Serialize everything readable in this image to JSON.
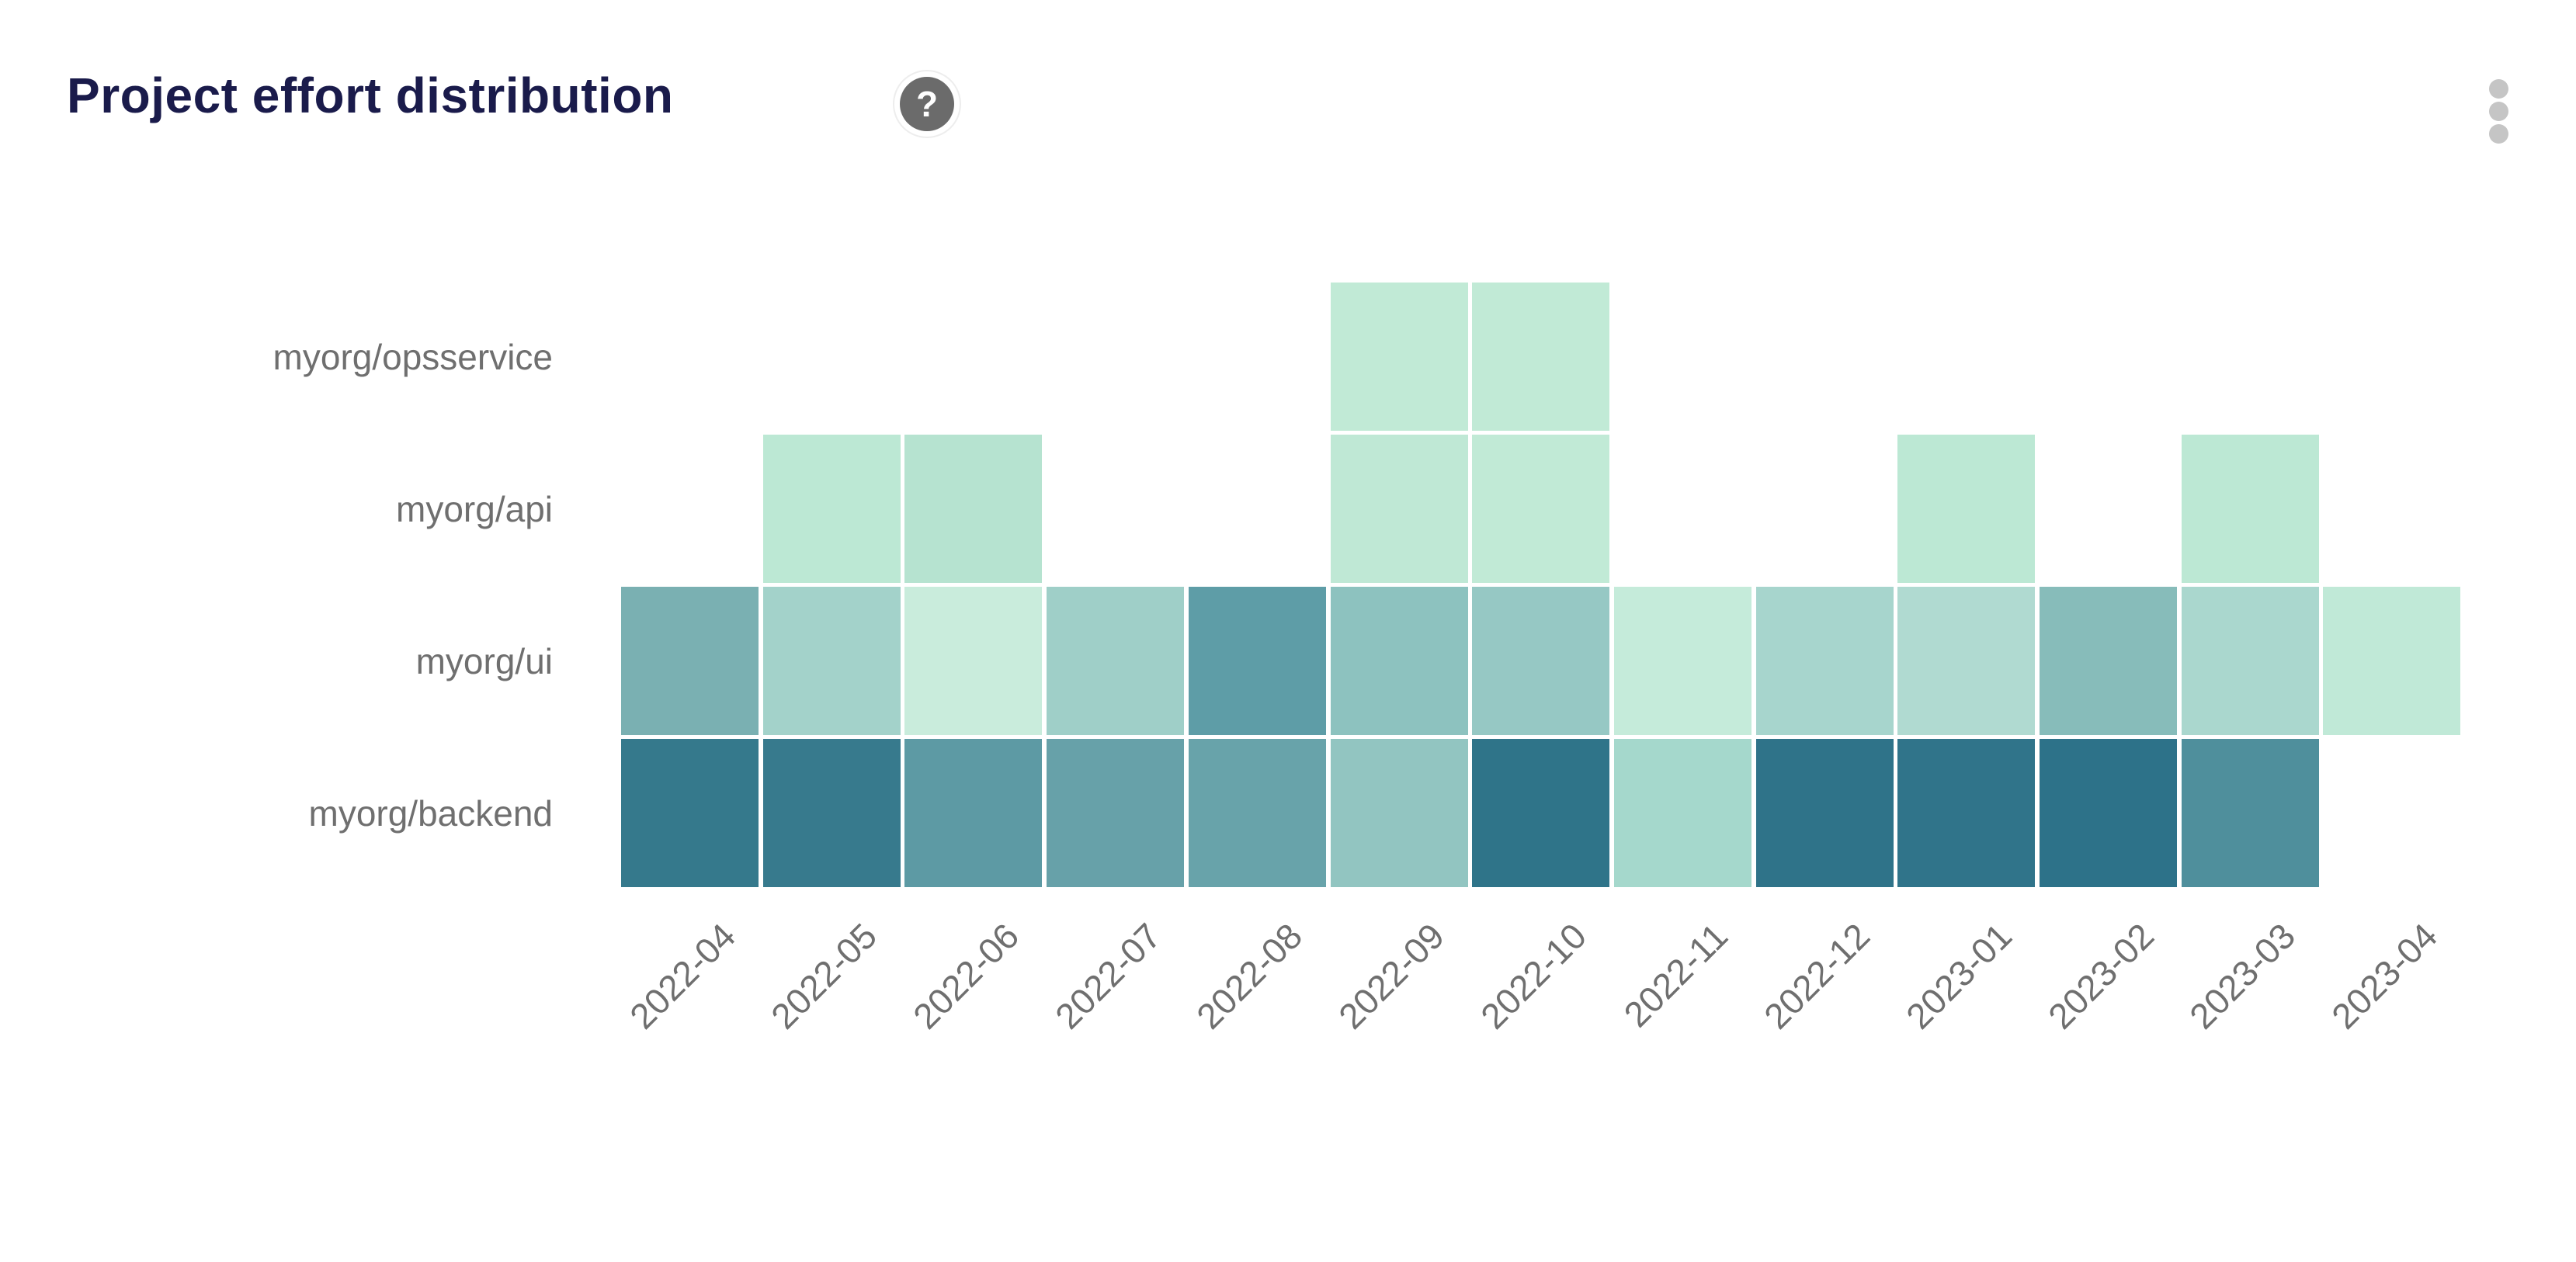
{
  "header": {
    "title": "Project effort distribution",
    "help_glyph": "?"
  },
  "chart_data": {
    "type": "heatmap",
    "title": "Project effort distribution",
    "x_categories": [
      "2022-04",
      "2022-05",
      "2022-06",
      "2022-07",
      "2022-08",
      "2022-09",
      "2022-10",
      "2022-11",
      "2022-12",
      "2023-01",
      "2023-02",
      "2023-03",
      "2023-04"
    ],
    "y_categories": [
      "myorg/opsservice",
      "myorg/api",
      "myorg/ui",
      "myorg/backend"
    ],
    "color_scale": {
      "low": "#c9ecdc",
      "high": "#2d7289"
    },
    "axis_label_color": "#6f6f6f",
    "cells": [
      {
        "y": "myorg/opsservice",
        "x": "2022-09",
        "color": "#c1ead6"
      },
      {
        "y": "myorg/opsservice",
        "x": "2022-10",
        "color": "#c1ead6"
      },
      {
        "y": "myorg/api",
        "x": "2022-05",
        "color": "#bce8d4"
      },
      {
        "y": "myorg/api",
        "x": "2022-06",
        "color": "#b6e3d0"
      },
      {
        "y": "myorg/api",
        "x": "2022-09",
        "color": "#bfe8d5"
      },
      {
        "y": "myorg/api",
        "x": "2022-10",
        "color": "#c1ead6"
      },
      {
        "y": "myorg/api",
        "x": "2023-01",
        "color": "#bce8d4"
      },
      {
        "y": "myorg/api",
        "x": "2023-03",
        "color": "#bce8d4"
      },
      {
        "y": "myorg/ui",
        "x": "2022-04",
        "color": "#7ab0b2"
      },
      {
        "y": "myorg/ui",
        "x": "2022-05",
        "color": "#a3d2ca"
      },
      {
        "y": "myorg/ui",
        "x": "2022-06",
        "color": "#c9ecdc"
      },
      {
        "y": "myorg/ui",
        "x": "2022-07",
        "color": "#9fcfc8"
      },
      {
        "y": "myorg/ui",
        "x": "2022-08",
        "color": "#5e9da7"
      },
      {
        "y": "myorg/ui",
        "x": "2022-09",
        "color": "#8dc2bf"
      },
      {
        "y": "myorg/ui",
        "x": "2022-10",
        "color": "#96c8c4"
      },
      {
        "y": "myorg/ui",
        "x": "2022-11",
        "color": "#c5ebda"
      },
      {
        "y": "myorg/ui",
        "x": "2022-12",
        "color": "#a7d5cd"
      },
      {
        "y": "myorg/ui",
        "x": "2023-01",
        "color": "#b0dad1"
      },
      {
        "y": "myorg/ui",
        "x": "2023-02",
        "color": "#87bcba"
      },
      {
        "y": "myorg/ui",
        "x": "2023-03",
        "color": "#aad7ce"
      },
      {
        "y": "myorg/ui",
        "x": "2023-04",
        "color": "#c0e9d7"
      },
      {
        "y": "myorg/backend",
        "x": "2022-04",
        "color": "#35798c"
      },
      {
        "y": "myorg/backend",
        "x": "2022-05",
        "color": "#377a8d"
      },
      {
        "y": "myorg/backend",
        "x": "2022-06",
        "color": "#5d9aa4"
      },
      {
        "y": "myorg/backend",
        "x": "2022-07",
        "color": "#67a1a9"
      },
      {
        "y": "myorg/backend",
        "x": "2022-08",
        "color": "#68a3aa"
      },
      {
        "y": "myorg/backend",
        "x": "2022-09",
        "color": "#92c5c1"
      },
      {
        "y": "myorg/backend",
        "x": "2022-10",
        "color": "#2f7489"
      },
      {
        "y": "myorg/backend",
        "x": "2022-11",
        "color": "#a5d8cc"
      },
      {
        "y": "myorg/backend",
        "x": "2022-12",
        "color": "#2f7389"
      },
      {
        "y": "myorg/backend",
        "x": "2023-01",
        "color": "#30748a"
      },
      {
        "y": "myorg/backend",
        "x": "2023-02",
        "color": "#2d7289"
      },
      {
        "y": "myorg/backend",
        "x": "2023-03",
        "color": "#4f8f9c"
      }
    ]
  }
}
